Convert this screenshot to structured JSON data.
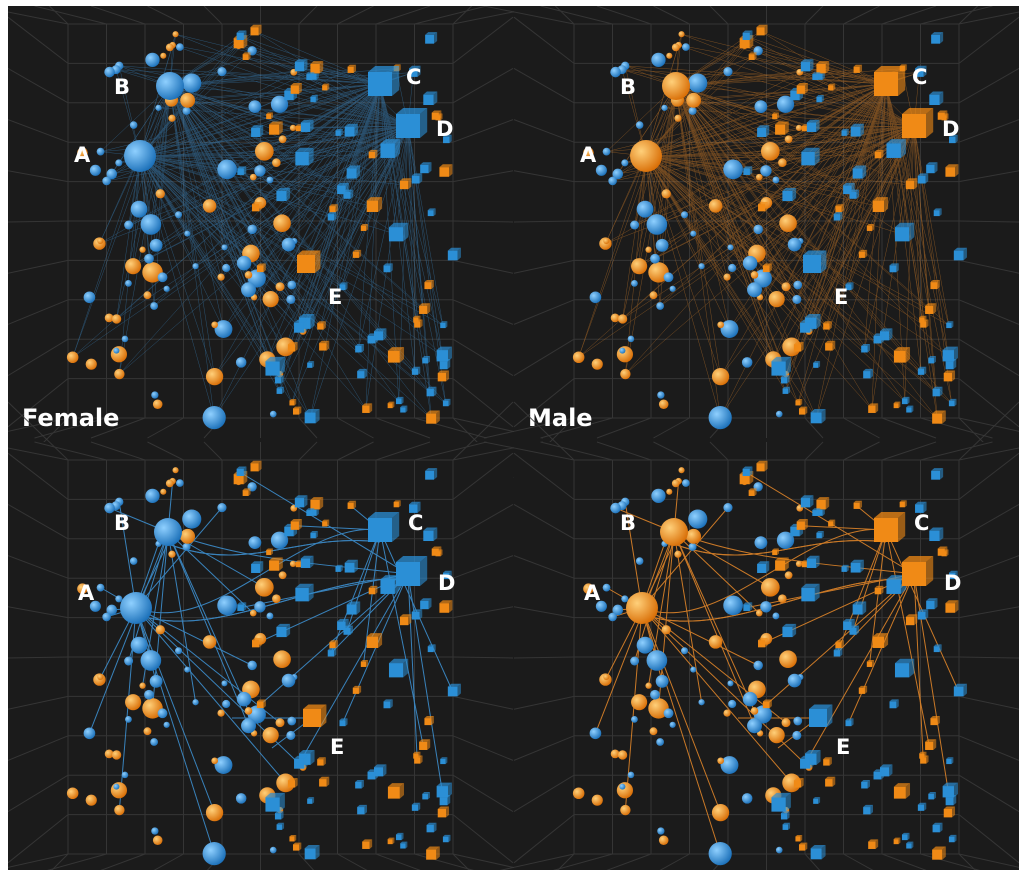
{
  "panels": [
    {
      "id": "female-overview",
      "caption": "Female",
      "node_color": "#2b8fd6",
      "edge_color": "#3f95d8",
      "mode": "dense",
      "labels": {
        "A": "A",
        "B": "B",
        "C": "C",
        "D": "D",
        "E": "E"
      },
      "hub_colors": {
        "A": "blue",
        "B": "blue",
        "C": "blue",
        "D": "blue",
        "E": "orange"
      }
    },
    {
      "id": "male-overview",
      "caption": "Male",
      "node_color": "#f08a16",
      "edge_color": "#e98a2a",
      "mode": "dense",
      "labels": {
        "A": "A",
        "B": "B",
        "C": "C",
        "D": "D",
        "E": "E"
      },
      "hub_colors": {
        "A": "orange",
        "B": "orange",
        "C": "orange",
        "D": "orange",
        "E": "blue"
      }
    },
    {
      "id": "female-detail",
      "caption": "",
      "node_color": "#2b8fd6",
      "edge_color": "#3f95d8",
      "mode": "sparse",
      "labels": {
        "A": "A",
        "B": "B",
        "C": "C",
        "D": "D",
        "E": "E"
      },
      "hub_colors": {
        "A": "blue",
        "B": "blue",
        "C": "blue",
        "D": "blue",
        "E": "orange"
      }
    },
    {
      "id": "male-detail",
      "caption": "",
      "node_color": "#f08a16",
      "edge_color": "#e98a2a",
      "mode": "sparse",
      "labels": {
        "A": "A",
        "B": "B",
        "C": "C",
        "D": "D",
        "E": "E"
      },
      "hub_colors": {
        "A": "orange",
        "B": "orange",
        "C": "orange",
        "D": "orange",
        "E": "blue"
      }
    }
  ],
  "colors": {
    "background": "#1b1b1b",
    "grid": "#3a3a3a",
    "blue": "#2b8fd6",
    "orange": "#f08a16",
    "label": "#ffffff"
  }
}
